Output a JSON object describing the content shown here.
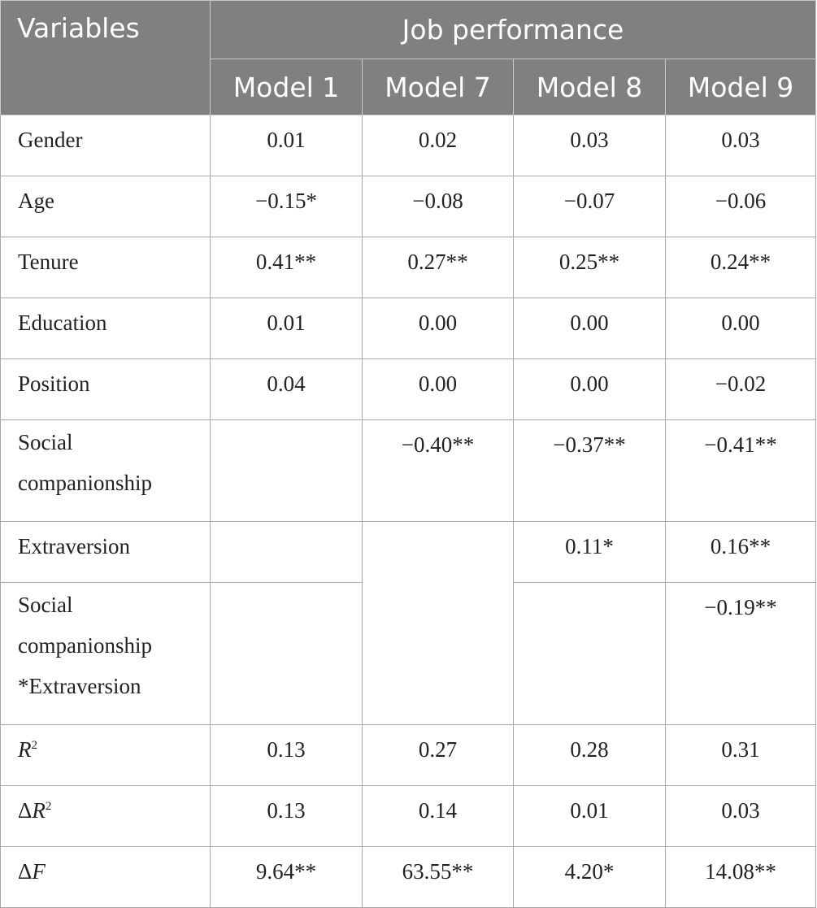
{
  "header": {
    "variables": "Variables",
    "group": "Job performance",
    "models": [
      "Model 1",
      "Model 7",
      "Model 8",
      "Model 9"
    ]
  },
  "rows": [
    {
      "label": "Gender",
      "values": [
        "0.01",
        "0.02",
        "0.03",
        "0.03"
      ]
    },
    {
      "label": "Age",
      "values": [
        "−0.15*",
        "−0.08",
        "−0.07",
        "−0.06"
      ]
    },
    {
      "label": "Tenure",
      "values": [
        "0.41**",
        "0.27**",
        "0.25**",
        "0.24**"
      ]
    },
    {
      "label": "Education",
      "values": [
        "0.01",
        "0.00",
        "0.00",
        "0.00"
      ]
    },
    {
      "label": "Position",
      "values": [
        "0.04",
        "0.00",
        "0.00",
        "−0.02"
      ]
    },
    {
      "label_lines": [
        "Social",
        "companionship"
      ],
      "values": [
        "",
        "−0.40**",
        "−0.37**",
        "−0.41**"
      ]
    },
    {
      "label": "Extraversion",
      "values": [
        "",
        "",
        "0.11*",
        "0.16**"
      ]
    },
    {
      "label_lines": [
        "Social",
        "companionship",
        "*Extraversion"
      ],
      "values": [
        "",
        "",
        "",
        "−0.19**"
      ]
    },
    {
      "label_main": "R",
      "label_sup": "2",
      "values": [
        "0.13",
        "0.27",
        "0.28",
        "0.31"
      ]
    },
    {
      "label_prefix": "Δ",
      "label_main": "R",
      "label_sup": "2",
      "values": [
        "0.13",
        "0.14",
        "0.01",
        "0.03"
      ]
    },
    {
      "label_prefix": "Δ",
      "label_main": "F",
      "values": [
        "9.64**",
        "63.55**",
        "4.20*",
        "14.08**"
      ]
    }
  ],
  "colors": {
    "header_bg": "#808080",
    "header_text": "#ffffff",
    "grid": "#a9a9a9"
  }
}
